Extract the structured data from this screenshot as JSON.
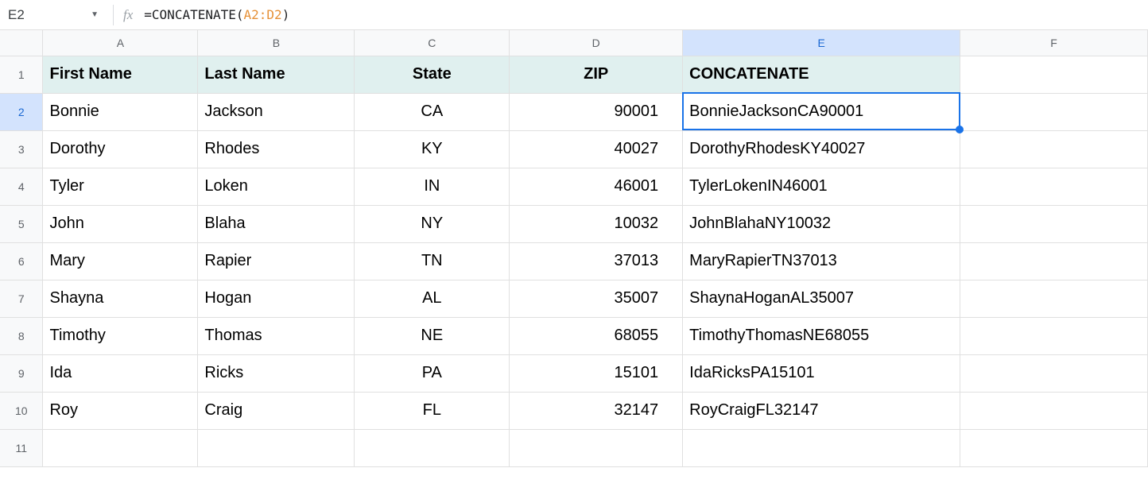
{
  "nameBox": "E2",
  "formula": {
    "prefix": "=CONCATENATE(",
    "range": "A2:D2",
    "suffix": ")"
  },
  "columns": [
    "A",
    "B",
    "C",
    "D",
    "E",
    "F"
  ],
  "activeColIndex": 4,
  "activeRowIndex": 1,
  "rowNumbers": [
    "1",
    "2",
    "3",
    "4",
    "5",
    "6",
    "7",
    "8",
    "9",
    "10",
    "11"
  ],
  "headerRow": {
    "A": "First Name",
    "B": "Last Name",
    "C": "State",
    "D": "ZIP",
    "E": "CONCATENATE"
  },
  "dataRows": [
    {
      "A": "Bonnie",
      "B": "Jackson",
      "C": "CA",
      "D": "90001",
      "E": "BonnieJacksonCA90001"
    },
    {
      "A": "Dorothy",
      "B": "Rhodes",
      "C": "KY",
      "D": "40027",
      "E": "DorothyRhodesKY40027"
    },
    {
      "A": "Tyler",
      "B": "Loken",
      "C": "IN",
      "D": "46001",
      "E": "TylerLokenIN46001"
    },
    {
      "A": "John",
      "B": "Blaha",
      "C": "NY",
      "D": "10032",
      "E": "JohnBlahaNY10032"
    },
    {
      "A": "Mary",
      "B": "Rapier",
      "C": "TN",
      "D": "37013",
      "E": "MaryRapierTN37013"
    },
    {
      "A": "Shayna",
      "B": "Hogan",
      "C": "AL",
      "D": "35007",
      "E": "ShaynaHoganAL35007"
    },
    {
      "A": "Timothy",
      "B": "Thomas",
      "C": "NE",
      "D": "68055",
      "E": "TimothyThomasNE68055"
    },
    {
      "A": "Ida",
      "B": "Ricks",
      "C": "PA",
      "D": "15101",
      "E": "IdaRicksPA15101"
    },
    {
      "A": "Roy",
      "B": "Craig",
      "C": "FL",
      "D": "32147",
      "E": "RoyCraigFL32147"
    }
  ],
  "colors": {
    "formulaRange": "#e69138",
    "selectionBorder": "#1a73e8",
    "headerFill": "#e0f0ef"
  },
  "columnMeta": {
    "A": {
      "align": "left",
      "isHeader": false
    },
    "B": {
      "align": "left",
      "isHeader": false
    },
    "C": {
      "align": "center",
      "isHeader": false
    },
    "D": {
      "align": "right",
      "isHeader": false
    },
    "E": {
      "align": "left",
      "isHeader": false
    },
    "F": {
      "align": "left",
      "isHeader": false
    }
  },
  "selectedCell": {
    "col": "E",
    "row": 2
  }
}
